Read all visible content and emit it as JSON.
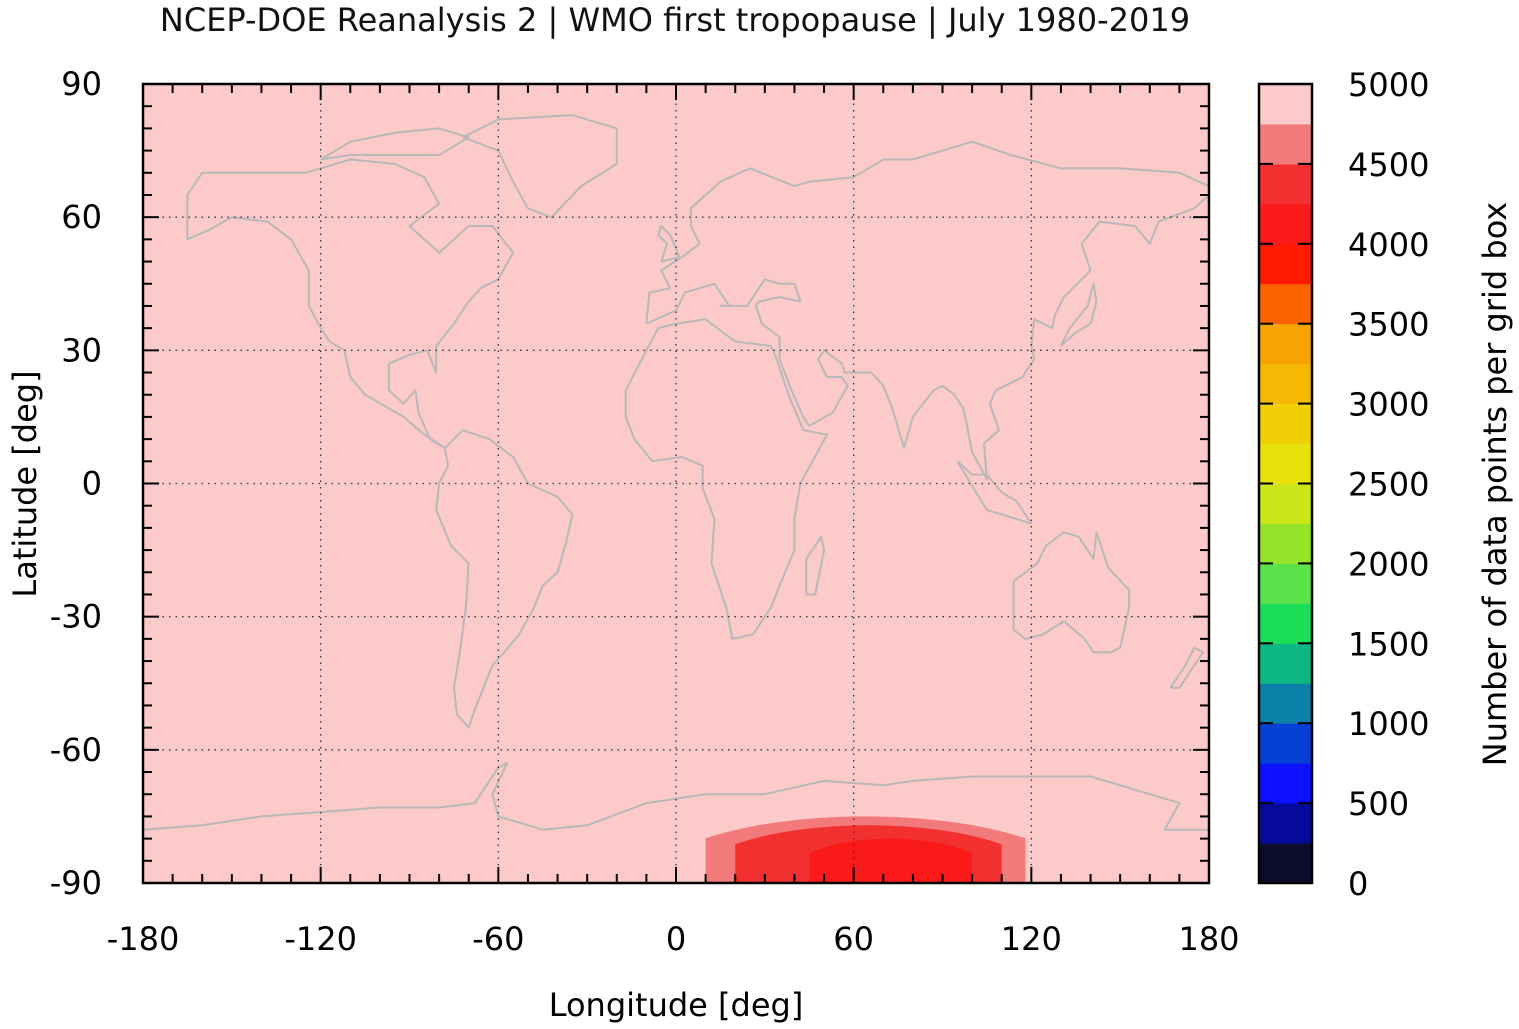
{
  "chart_data": {
    "type": "heatmap",
    "title": "NCEP-DOE Reanalysis 2 | WMO first tropopause | July 1980-2019",
    "xlabel": "Longitude [deg]",
    "ylabel": "Latitude [deg]",
    "colorbar_label": "Number of data points per grid box",
    "xlim": [
      -180,
      180
    ],
    "ylim": [
      -90,
      90
    ],
    "xticks": [
      -180,
      -120,
      -60,
      0,
      60,
      120,
      180
    ],
    "yticks": [
      90,
      60,
      30,
      0,
      -30,
      -60,
      -90
    ],
    "grid": true,
    "background_value": 5000,
    "colorbar": {
      "range": [
        0,
        5000
      ],
      "ticks": [
        0,
        500,
        1000,
        1500,
        2000,
        2500,
        3000,
        3500,
        4000,
        4500,
        5000
      ],
      "levels": [
        {
          "from": 0,
          "to": 250,
          "color": "#0b0b2b"
        },
        {
          "from": 250,
          "to": 500,
          "color": "#050a9a"
        },
        {
          "from": 500,
          "to": 750,
          "color": "#0b10ff"
        },
        {
          "from": 750,
          "to": 1000,
          "color": "#0640d6"
        },
        {
          "from": 1000,
          "to": 1250,
          "color": "#0b80a8"
        },
        {
          "from": 1250,
          "to": 1500,
          "color": "#0bb884"
        },
        {
          "from": 1500,
          "to": 1750,
          "color": "#1ade58"
        },
        {
          "from": 1750,
          "to": 2000,
          "color": "#5ae24a"
        },
        {
          "from": 2000,
          "to": 2250,
          "color": "#96e42a"
        },
        {
          "from": 2250,
          "to": 2500,
          "color": "#cbe618"
        },
        {
          "from": 2500,
          "to": 2750,
          "color": "#e8e00a"
        },
        {
          "from": 2750,
          "to": 3000,
          "color": "#f0ce08"
        },
        {
          "from": 3000,
          "to": 3250,
          "color": "#f5b804"
        },
        {
          "from": 3250,
          "to": 3500,
          "color": "#f7a402"
        },
        {
          "from": 3500,
          "to": 3750,
          "color": "#fb6400"
        },
        {
          "from": 3750,
          "to": 4000,
          "color": "#ff1a00"
        },
        {
          "from": 4000,
          "to": 4250,
          "color": "#fb1a1a"
        },
        {
          "from": 4250,
          "to": 4500,
          "color": "#f23030"
        },
        {
          "from": 4500,
          "to": 4750,
          "color": "#f27a7a"
        },
        {
          "from": 4750,
          "to": 5000,
          "color": "#fdcaca"
        }
      ]
    },
    "regions": [
      {
        "lon_range": [
          10,
          118
        ],
        "lat_range": [
          -90,
          -75
        ],
        "value_range": [
          4500,
          4750
        ],
        "color": "#f27a7a"
      },
      {
        "lon_range": [
          20,
          110
        ],
        "lat_range": [
          -90,
          -77
        ],
        "value_range": [
          4250,
          4500
        ],
        "color": "#f23030"
      },
      {
        "lon_range": [
          45,
          100
        ],
        "lat_range": [
          -90,
          -80
        ],
        "value_range": [
          4000,
          4250
        ],
        "color": "#fb1a1a"
      }
    ],
    "coastline_color": "#b8b8b8"
  }
}
